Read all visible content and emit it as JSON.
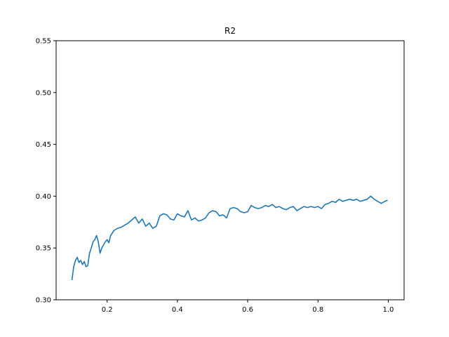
{
  "chart_data": {
    "type": "line",
    "title": "R2",
    "xlabel": "",
    "ylabel": "",
    "xlim": [
      0.055,
      1.045
    ],
    "ylim": [
      0.3,
      0.55
    ],
    "xticks": [
      0.2,
      0.4,
      0.6,
      0.8,
      1.0
    ],
    "xtick_labels": [
      "0.2",
      "0.4",
      "0.6",
      "0.8",
      "1.0"
    ],
    "yticks": [
      0.3,
      0.35,
      0.4,
      0.45,
      0.5,
      0.55
    ],
    "ytick_labels": [
      "0.30",
      "0.35",
      "0.40",
      "0.45",
      "0.50",
      "0.55"
    ],
    "grid": false,
    "series": [
      {
        "color": "#1f77b4",
        "x": [
          0.1,
          0.105,
          0.11,
          0.115,
          0.12,
          0.125,
          0.13,
          0.135,
          0.14,
          0.145,
          0.15,
          0.155,
          0.16,
          0.165,
          0.17,
          0.175,
          0.18,
          0.185,
          0.19,
          0.195,
          0.2,
          0.205,
          0.21,
          0.22,
          0.23,
          0.24,
          0.25,
          0.26,
          0.27,
          0.28,
          0.29,
          0.3,
          0.31,
          0.32,
          0.33,
          0.34,
          0.35,
          0.36,
          0.37,
          0.38,
          0.39,
          0.4,
          0.41,
          0.42,
          0.43,
          0.44,
          0.45,
          0.46,
          0.47,
          0.48,
          0.49,
          0.5,
          0.51,
          0.52,
          0.53,
          0.54,
          0.55,
          0.56,
          0.57,
          0.58,
          0.59,
          0.6,
          0.61,
          0.62,
          0.63,
          0.64,
          0.65,
          0.66,
          0.67,
          0.68,
          0.69,
          0.7,
          0.71,
          0.72,
          0.73,
          0.74,
          0.75,
          0.76,
          0.77,
          0.78,
          0.79,
          0.8,
          0.81,
          0.82,
          0.83,
          0.84,
          0.85,
          0.86,
          0.87,
          0.88,
          0.89,
          0.9,
          0.91,
          0.92,
          0.93,
          0.94,
          0.95,
          0.96,
          0.97,
          0.98,
          0.99,
          0.998
        ],
        "y": [
          0.319,
          0.332,
          0.338,
          0.341,
          0.336,
          0.338,
          0.334,
          0.337,
          0.332,
          0.333,
          0.345,
          0.35,
          0.356,
          0.358,
          0.362,
          0.356,
          0.345,
          0.35,
          0.353,
          0.356,
          0.358,
          0.355,
          0.362,
          0.367,
          0.369,
          0.37,
          0.372,
          0.374,
          0.377,
          0.38,
          0.374,
          0.378,
          0.371,
          0.374,
          0.369,
          0.371,
          0.381,
          0.383,
          0.382,
          0.378,
          0.377,
          0.383,
          0.381,
          0.38,
          0.386,
          0.377,
          0.379,
          0.376,
          0.377,
          0.379,
          0.384,
          0.386,
          0.385,
          0.381,
          0.382,
          0.379,
          0.388,
          0.389,
          0.388,
          0.385,
          0.384,
          0.385,
          0.391,
          0.389,
          0.388,
          0.389,
          0.391,
          0.39,
          0.392,
          0.389,
          0.39,
          0.388,
          0.387,
          0.389,
          0.39,
          0.386,
          0.388,
          0.39,
          0.389,
          0.39,
          0.389,
          0.39,
          0.388,
          0.392,
          0.393,
          0.395,
          0.394,
          0.397,
          0.395,
          0.396,
          0.397,
          0.396,
          0.397,
          0.395,
          0.396,
          0.397,
          0.4,
          0.397,
          0.395,
          0.393,
          0.395,
          0.396
        ]
      }
    ]
  }
}
